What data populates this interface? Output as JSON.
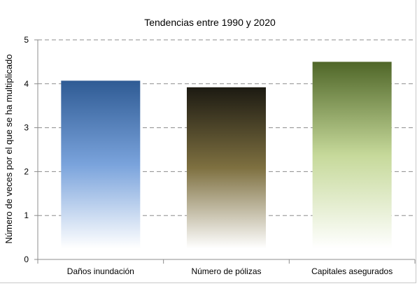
{
  "chart_data": {
    "type": "bar",
    "title": "Tendencias entre 1990 y 2020",
    "xlabel": "",
    "ylabel": "Número de veces por el que se ha multiplicado",
    "categories": [
      "Daños inundación",
      "Número de pólizas",
      "Capitales asegurados"
    ],
    "values": [
      4.07,
      3.92,
      4.5
    ],
    "ylim": [
      0,
      5
    ],
    "yticks": [
      "0",
      "1",
      "2",
      "3",
      "4",
      "5"
    ],
    "grid": true,
    "legend": "none",
    "colors": {
      "bar_1": {
        "top": "#2f5b94",
        "mid": "#7aa3dc",
        "bottom": "#ffffff"
      },
      "bar_2": {
        "top": "#1c1a12",
        "mid": "#7e7040",
        "bottom": "#ffffff"
      },
      "bar_3": {
        "top": "#4f6628",
        "mid": "#c6d99a",
        "bottom": "#ffffff"
      },
      "gridline": "#8c8c8c",
      "axis": "#8c8c8c"
    }
  }
}
